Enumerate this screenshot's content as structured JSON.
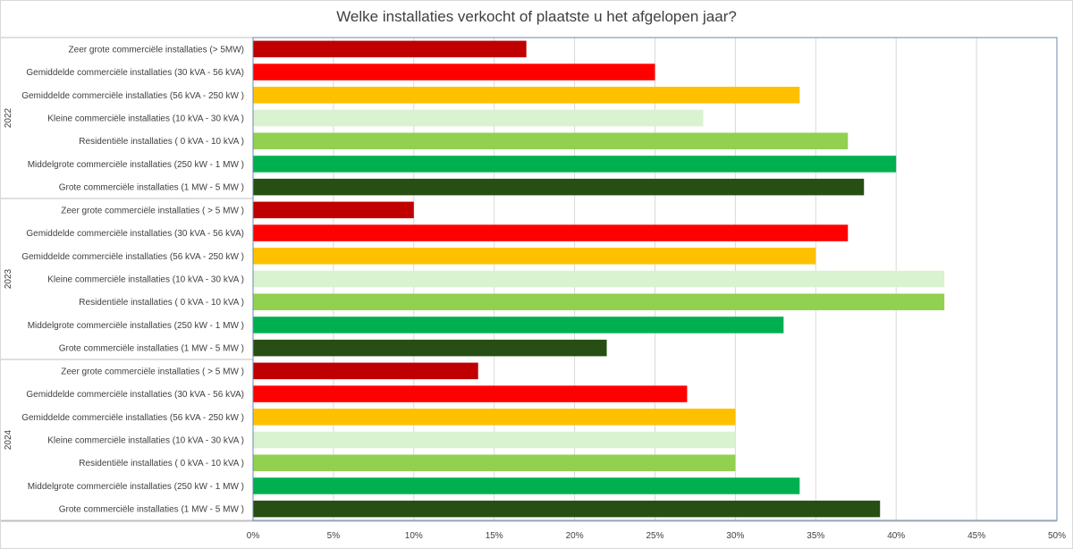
{
  "chart_data": {
    "type": "bar",
    "orientation": "horizontal",
    "title": "Welke installaties verkocht of plaatste u het afgelopen jaar?",
    "xlim": [
      0,
      50
    ],
    "x_ticks": [
      "0%",
      "5%",
      "10%",
      "15%",
      "20%",
      "25%",
      "30%",
      "35%",
      "40%",
      "45%",
      "50%"
    ],
    "grid": true,
    "groups": [
      {
        "name": "2022",
        "bars": [
          {
            "label": "Zeer grote commerciële installaties (> 5MW)",
            "value": 17,
            "color": "#c00000"
          },
          {
            "label": "Gemiddelde commerciële installaties (30 kVA -  56 kVA)",
            "value": 25,
            "color": "#ff0000"
          },
          {
            "label": "Gemiddelde commerciële installaties (56 kVA - 250 kW )",
            "value": 34,
            "color": "#ffc000"
          },
          {
            "label": "Kleine commerciële installaties (10 kVA - 30 kVA )",
            "value": 28,
            "color": "#d9f2d0"
          },
          {
            "label": "Residentiële installaties ( 0 kVA - 10 kVA )",
            "value": 37,
            "color": "#92d050"
          },
          {
            "label": "Middelgrote commerciële installaties (250 kW - 1 MW )",
            "value": 40,
            "color": "#00b050"
          },
          {
            "label": "Grote commerciële installaties (1 MW - 5 MW )",
            "value": 38,
            "color": "#274e13"
          }
        ]
      },
      {
        "name": "2023",
        "bars": [
          {
            "label": "Zeer grote commerciële installaties ( > 5 MW )",
            "value": 10,
            "color": "#c00000"
          },
          {
            "label": "Gemiddelde commerciële installaties (30 kVA -  56 kVA)",
            "value": 37,
            "color": "#ff0000"
          },
          {
            "label": "Gemiddelde commerciële installaties (56 kVA - 250 kW )",
            "value": 35,
            "color": "#ffc000"
          },
          {
            "label": "Kleine commerciële installaties (10 kVA - 30 kVA )",
            "value": 43,
            "color": "#d9f2d0"
          },
          {
            "label": "Residentiële installaties ( 0 kVA - 10 kVA )",
            "value": 43,
            "color": "#92d050"
          },
          {
            "label": "Middelgrote commerciële installaties (250 kW - 1 MW )",
            "value": 33,
            "color": "#00b050"
          },
          {
            "label": "Grote commerciële installaties (1 MW - 5 MW )",
            "value": 22,
            "color": "#274e13"
          }
        ]
      },
      {
        "name": "2024",
        "bars": [
          {
            "label": "Zeer grote commerciële installaties ( > 5 MW )",
            "value": 14,
            "color": "#c00000"
          },
          {
            "label": "Gemiddelde commerciële installaties (30 kVA -  56 kVA)",
            "value": 27,
            "color": "#ff0000"
          },
          {
            "label": "Gemiddelde commerciële installaties (56 kVA - 250 kW )",
            "value": 30,
            "color": "#ffc000"
          },
          {
            "label": "Kleine commerciële installaties (10 kVA - 30 kVA )",
            "value": 30,
            "color": "#d9f2d0"
          },
          {
            "label": "Residentiële installaties ( 0 kVA - 10 kVA )",
            "value": 30,
            "color": "#92d050"
          },
          {
            "label": "Middelgrote commerciële installaties (250 kW - 1 MW )",
            "value": 34,
            "color": "#00b050"
          },
          {
            "label": "Grote commerciële installaties (1 MW - 5 MW )",
            "value": 39,
            "color": "#274e13"
          }
        ]
      }
    ]
  }
}
